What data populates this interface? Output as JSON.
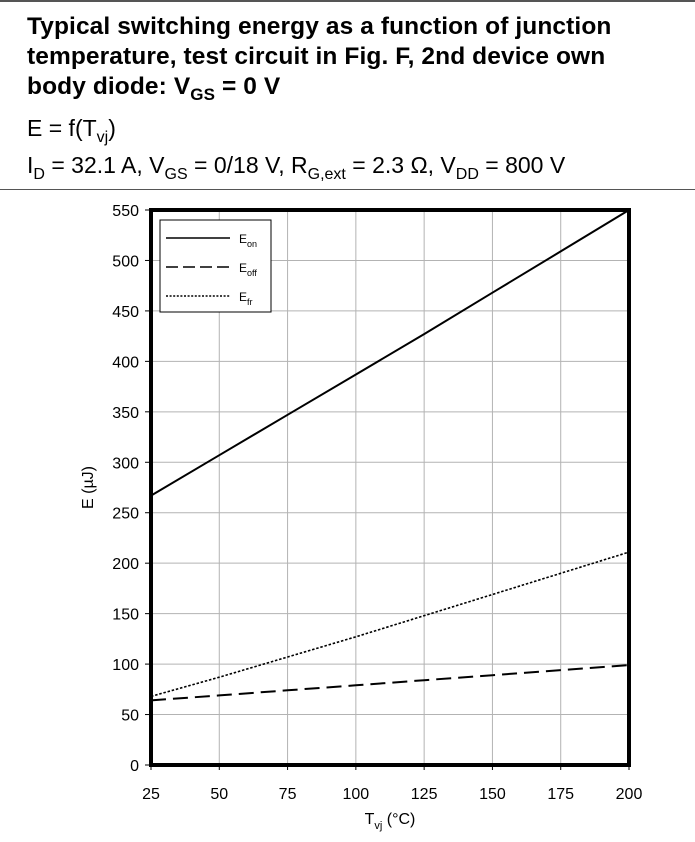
{
  "header": {
    "title_line1": "Typical switching energy as a function of junction",
    "title_line2": "temperature, test circuit in Fig. F, 2nd device own",
    "title_line3_pre": "body diode: V",
    "title_line3_sub": "GS",
    "title_line3_post": " = 0 V",
    "formula": {
      "pre": "E = f(T",
      "sub": "vj",
      "post": ")"
    },
    "conditions": {
      "id_main": "I",
      "id_sub": "D",
      "id_val": " = 32.1 A, V",
      "vgs_sub": "GS",
      "vgs_val": " = 0/18 V, R",
      "rg_sub": "G,ext",
      "rg_val": " = 2.3 Ω, V",
      "vdd_sub": "DD",
      "vdd_val": " = 800 V"
    }
  },
  "chart_data": {
    "type": "line",
    "title": "",
    "xlabel": "T",
    "xlabel_sub": "vj",
    "xlabel_unit": " (°C)",
    "ylabel": "E (µJ)",
    "xlim": [
      25,
      200
    ],
    "ylim": [
      0,
      550
    ],
    "xticks": [
      25,
      50,
      75,
      100,
      125,
      150,
      175,
      200
    ],
    "yticks": [
      0,
      50,
      100,
      150,
      200,
      250,
      300,
      350,
      400,
      450,
      500,
      550
    ],
    "grid": true,
    "legend_position": "top-left",
    "series": [
      {
        "name": "E",
        "name_sub": "on",
        "style": "solid",
        "x": [
          25,
          50,
          75,
          100,
          125,
          150,
          175,
          200
        ],
        "y": [
          267,
          307,
          347,
          387,
          427,
          468,
          509,
          550
        ]
      },
      {
        "name": "E",
        "name_sub": "off",
        "style": "dashed",
        "x": [
          25,
          50,
          75,
          100,
          125,
          150,
          175,
          200
        ],
        "y": [
          64,
          69,
          74,
          79,
          84,
          89,
          94,
          99
        ]
      },
      {
        "name": "E",
        "name_sub": "fr",
        "style": "dotted",
        "x": [
          25,
          50,
          75,
          100,
          125,
          150,
          175,
          200
        ],
        "y": [
          68,
          87,
          107,
          127,
          148,
          169,
          190,
          211
        ]
      }
    ]
  }
}
